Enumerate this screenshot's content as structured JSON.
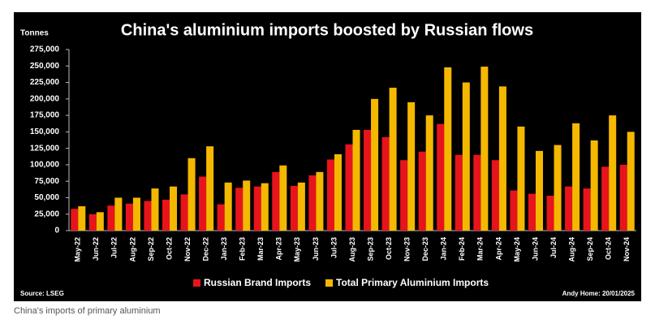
{
  "chart_data": {
    "type": "bar",
    "title": "China's aluminium imports boosted by Russian flows",
    "y_label": "Tonnes",
    "source": "Source: LSEG",
    "credit": "Andy Home: 20/01/2025",
    "caption": "China's imports of primary aluminium",
    "categories": [
      "May-22",
      "Jun-22",
      "Jul-22",
      "Aug-22",
      "Sep-22",
      "Oct-22",
      "Nov-22",
      "Dec-22",
      "Jan-23",
      "Feb-23",
      "Mar-23",
      "Apr-23",
      "May-23",
      "Jun-23",
      "Jul-23",
      "Aug-23",
      "Sep-23",
      "Oct-23",
      "Nov-23",
      "Dec-23",
      "Jan-24",
      "Feb-24",
      "Mar-24",
      "Apr-24",
      "May-24",
      "Jun-24",
      "Jul-24",
      "Aug-24",
      "Sep-24",
      "Oct-24",
      "Nov-24"
    ],
    "series": [
      {
        "name": "Russian Brand Imports",
        "color": "#e8141c",
        "values": [
          33000,
          25000,
          38000,
          41000,
          45000,
          47000,
          55000,
          82000,
          40000,
          65000,
          67000,
          89000,
          68000,
          84000,
          108000,
          131000,
          153000,
          142000,
          107000,
          120000,
          162000,
          115000,
          115000,
          107000,
          61000,
          56000,
          53000,
          67000,
          64000,
          97000,
          100000
        ]
      },
      {
        "name": "Total Primary Aluminium Imports",
        "color": "#f5b800",
        "values": [
          37000,
          28000,
          50000,
          50000,
          64000,
          67000,
          110000,
          128000,
          73000,
          76000,
          72000,
          99000,
          73000,
          89000,
          116000,
          153000,
          200000,
          217000,
          195000,
          175000,
          248000,
          225000,
          249000,
          219000,
          158000,
          121000,
          130000,
          163000,
          137000,
          175000,
          150000
        ]
      }
    ],
    "ylim": [
      0,
      275000
    ],
    "yticks": [
      0,
      {
        "value": 25000,
        "label": "25,000"
      },
      {
        "value": 50000,
        "label": "50,000"
      },
      {
        "value": 75000,
        "label": "75,000"
      },
      {
        "value": 100000,
        "label": "100,000"
      },
      {
        "value": 125000,
        "label": "125,000"
      },
      {
        "value": 150000,
        "label": "150,000"
      },
      {
        "value": 175000,
        "label": "175,000"
      },
      {
        "value": 200000,
        "label": "200,000"
      },
      {
        "value": 225000,
        "label": "225,000"
      },
      {
        "value": 250000,
        "label": "250,000"
      },
      {
        "value": 275000,
        "label": "275,000"
      }
    ],
    "grid": false,
    "legend": "bottom"
  }
}
